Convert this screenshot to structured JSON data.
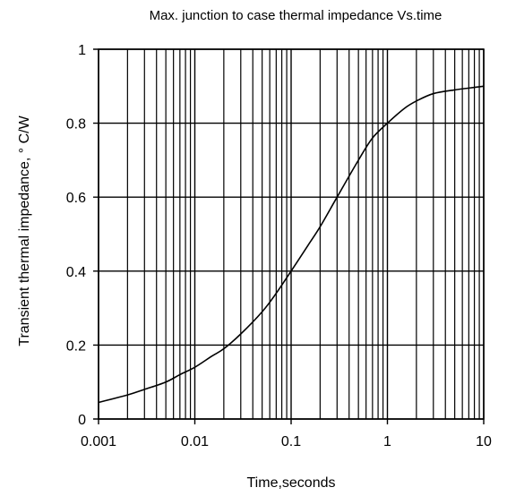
{
  "chart_data": {
    "type": "line",
    "title": "Max. junction to case thermal impedance Vs.time",
    "xlabel": "Time,seconds",
    "ylabel": "Transient thermal impedance,  ° C/W",
    "x_scale": "log",
    "xlim": [
      0.001,
      10
    ],
    "ylim": [
      0,
      1
    ],
    "x_ticks": [
      "0.001",
      "0.01",
      "0.1",
      "1",
      "10"
    ],
    "y_ticks": [
      "0",
      "0.2",
      "0.4",
      "0.6",
      "0.8",
      "1"
    ],
    "grid": true,
    "line_color": "#000000",
    "series": [
      {
        "x": [
          0.001,
          0.002,
          0.003,
          0.005,
          0.007,
          0.01,
          0.015,
          0.02,
          0.03,
          0.05,
          0.07,
          0.1,
          0.15,
          0.2,
          0.3,
          0.5,
          0.7,
          1,
          1.5,
          2,
          3,
          5,
          7,
          10
        ],
        "y": [
          0.045,
          0.065,
          0.08,
          0.1,
          0.12,
          0.14,
          0.17,
          0.19,
          0.23,
          0.29,
          0.34,
          0.4,
          0.47,
          0.52,
          0.6,
          0.7,
          0.76,
          0.8,
          0.84,
          0.86,
          0.88,
          0.89,
          0.895,
          0.9
        ]
      }
    ]
  }
}
